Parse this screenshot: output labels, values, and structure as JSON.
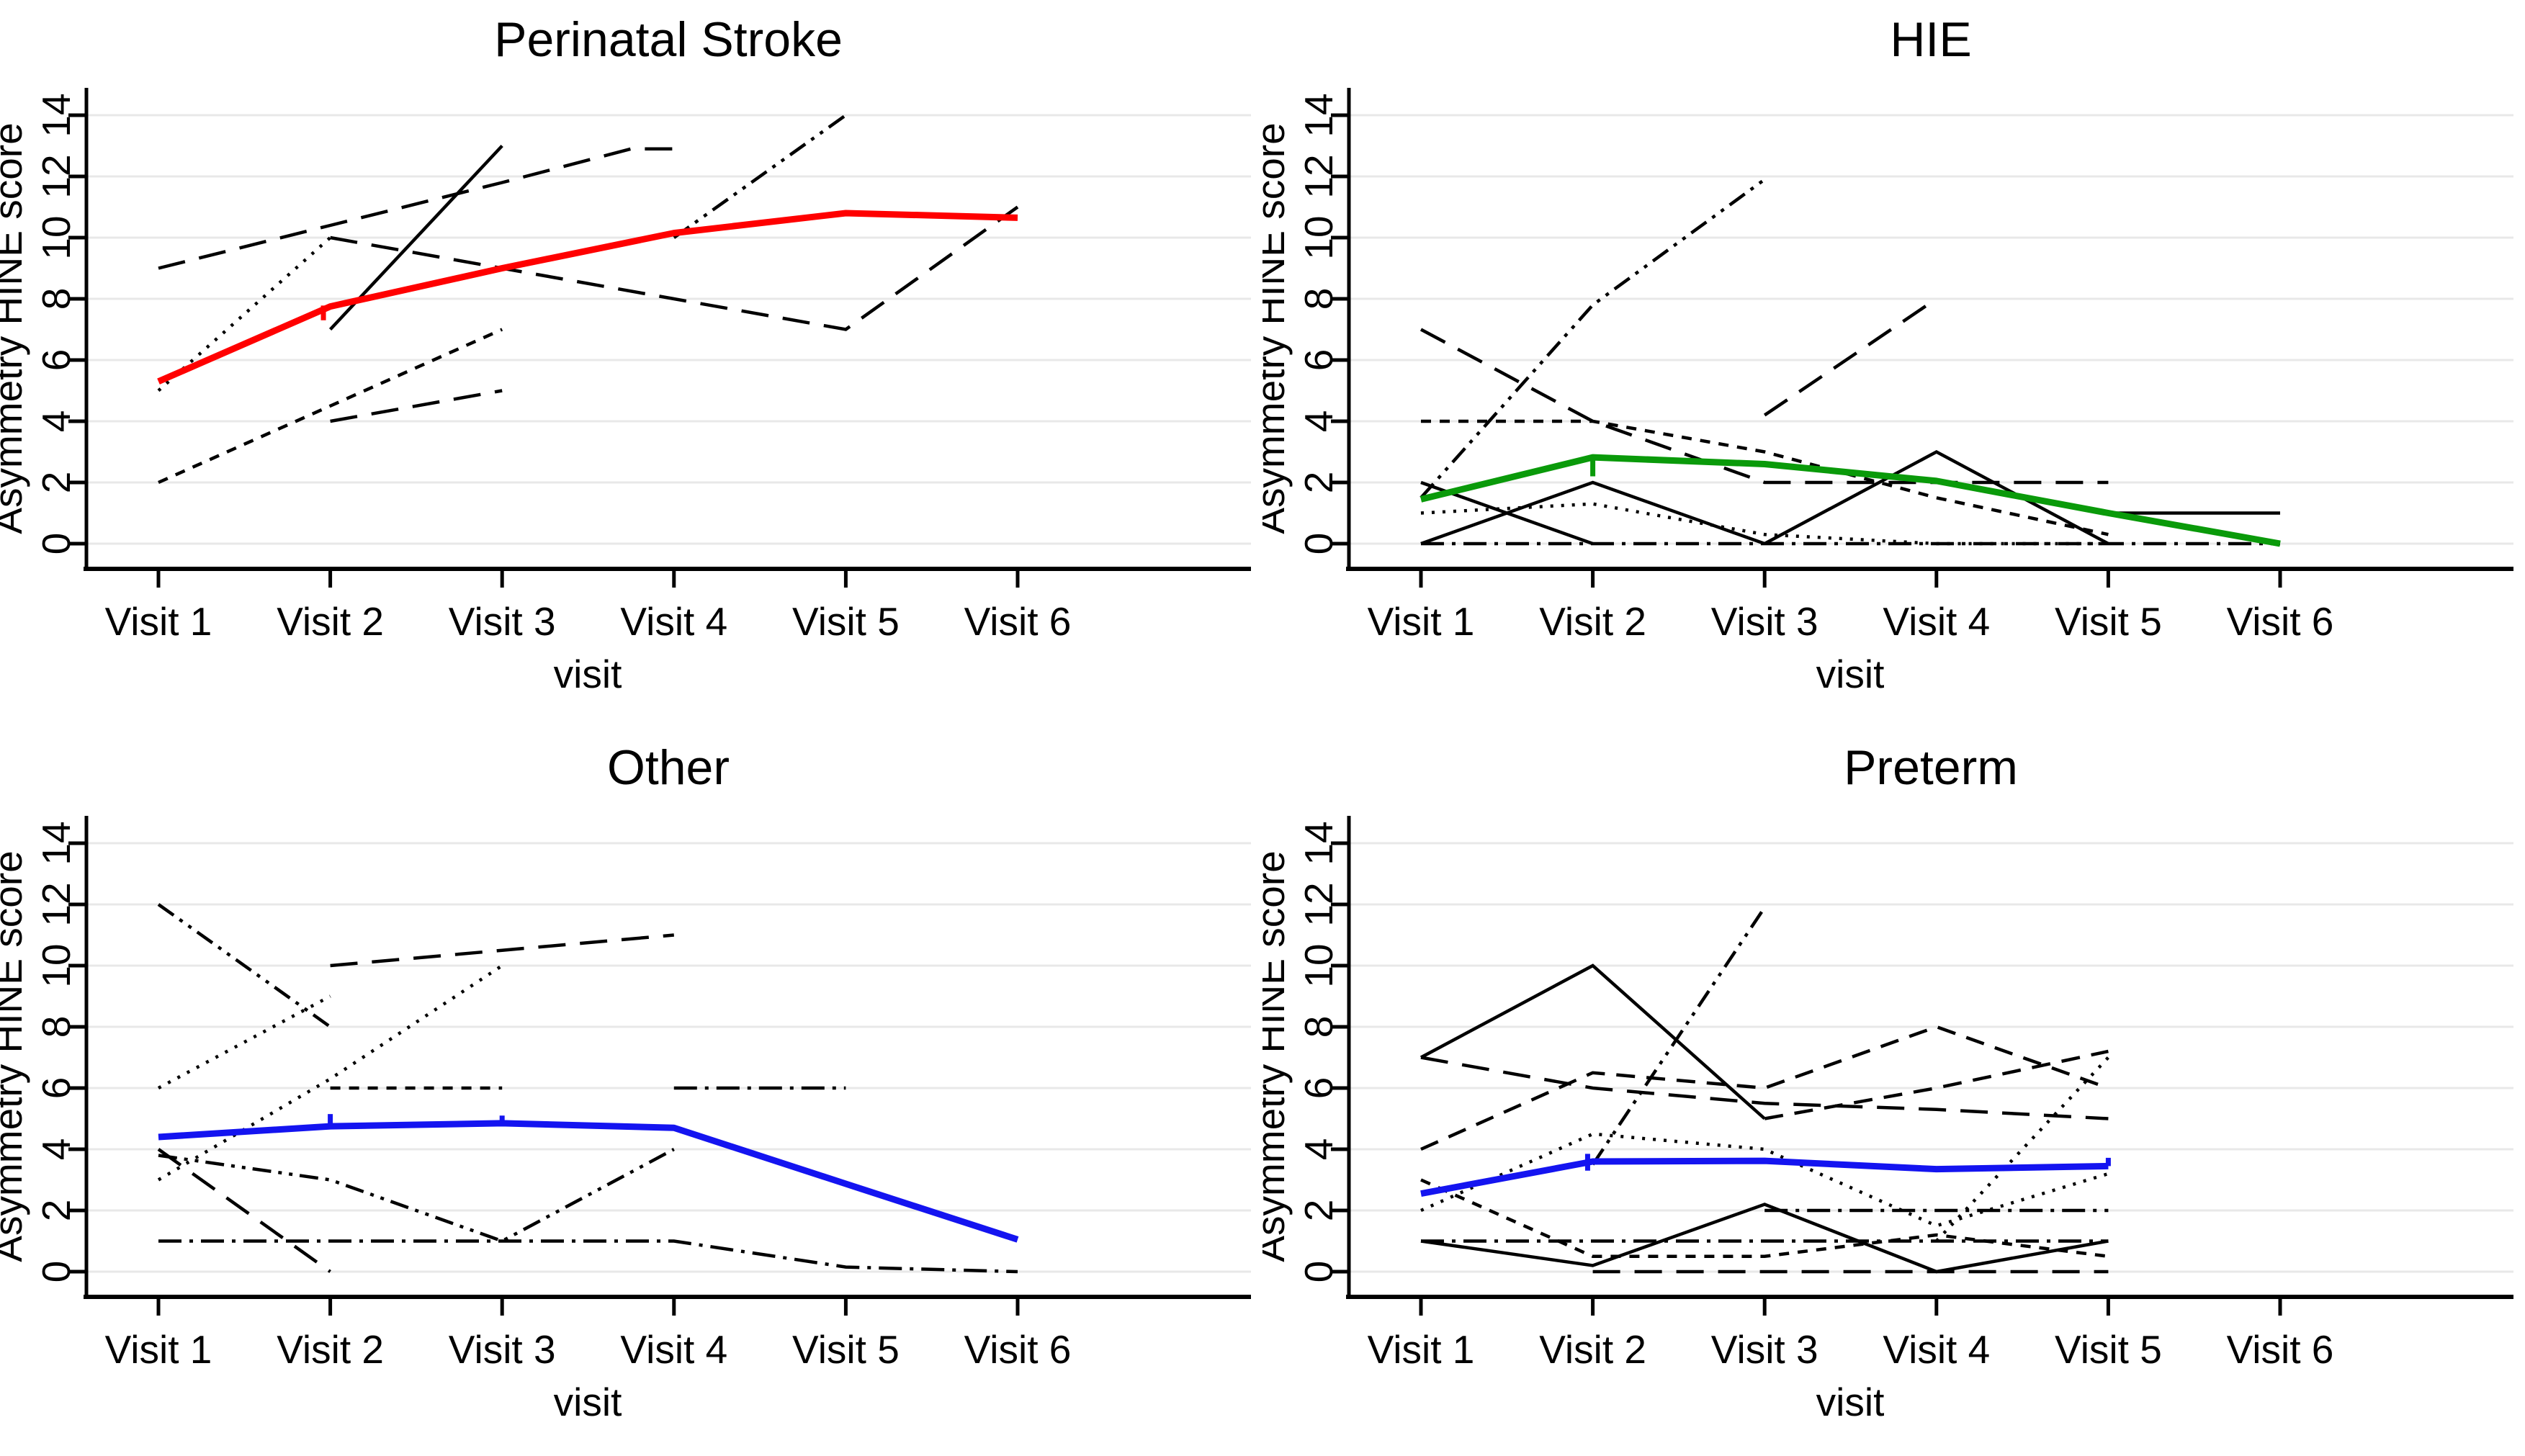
{
  "figure": {
    "background": "#ffffff",
    "grid_color": "#e8e8e8",
    "axis_color": "#000000",
    "trajectory_color": "#000000"
  },
  "chart_data": {
    "type": "line",
    "layout": "2x2-small-multiples",
    "xlabel": "visit",
    "ylabel": "Asymmetry HINE score",
    "categories": [
      "Visit 1",
      "Visit 2",
      "Visit 3",
      "Visit 4",
      "Visit 5",
      "Visit 6"
    ],
    "yticks": [
      0,
      2,
      4,
      6,
      8,
      10,
      12,
      14
    ],
    "ylim": [
      0,
      14
    ],
    "grid": "horizontal-only",
    "legend": "none",
    "note": "Each panel shows individual patient trajectories (black, varied dash patterns) and a thick colored group-mean line.",
    "panels": [
      {
        "title": "Perinatal Stroke",
        "mean": {
          "name": "mean-perinatal-stroke",
          "color": "#ff0000",
          "points": [
            [
              1,
              5.3
            ],
            [
              2,
              7.75
            ],
            [
              3,
              9.0
            ],
            [
              4,
              10.15
            ],
            [
              5,
              10.8
            ],
            [
              6,
              10.65
            ]
          ],
          "step_ticks": [
            {
              "x": 1.96,
              "y1": 7.3,
              "y2": 7.78
            }
          ]
        },
        "lines": [
          {
            "style": "longdash",
            "points": [
              [
                1,
                9
              ],
              [
                2,
                10.4
              ],
              [
                3,
                11.8
              ],
              [
                3.75,
                12.9
              ],
              [
                4,
                12.9
              ]
            ]
          },
          {
            "style": "longdash",
            "points": [
              [
                2,
                10
              ],
              [
                3,
                9
              ],
              [
                4,
                8
              ],
              [
                5,
                7
              ],
              [
                6,
                11
              ]
            ]
          },
          {
            "style": "solid",
            "points": [
              [
                2,
                7
              ],
              [
                3,
                13
              ]
            ]
          },
          {
            "style": "dotted",
            "points": [
              [
                1,
                5
              ],
              [
                2,
                10
              ]
            ]
          },
          {
            "style": "shortdash",
            "points": [
              [
                1,
                2
              ],
              [
                2,
                4.5
              ],
              [
                3,
                7
              ]
            ]
          },
          {
            "style": "longdash",
            "points": [
              [
                2,
                4
              ],
              [
                3,
                5
              ]
            ]
          },
          {
            "style": "dashdotdot",
            "points": [
              [
                4,
                10
              ],
              [
                5,
                14
              ]
            ]
          }
        ]
      },
      {
        "title": "HIE",
        "mean": {
          "name": "mean-hie",
          "color": "#0a9a0a",
          "points": [
            [
              1,
              1.45
            ],
            [
              2,
              2.82
            ],
            [
              3,
              2.6
            ],
            [
              4,
              2.05
            ],
            [
              5,
              1.0
            ],
            [
              6,
              0
            ]
          ],
          "step_ticks": [
            {
              "x": 2,
              "y1": 2.82,
              "y2": 2.2
            }
          ]
        },
        "lines": [
          {
            "style": "dashdotdot",
            "points": [
              [
                1,
                1.5
              ],
              [
                2,
                7.8
              ],
              [
                3,
                11.9
              ]
            ]
          },
          {
            "style": "longdash",
            "points": [
              [
                1,
                7
              ],
              [
                2,
                4
              ],
              [
                3,
                2
              ],
              [
                4,
                2
              ],
              [
                5,
                2
              ]
            ]
          },
          {
            "style": "shortdash",
            "points": [
              [
                1,
                4
              ],
              [
                2,
                4
              ],
              [
                3,
                3
              ],
              [
                4,
                1.5
              ],
              [
                5,
                0.3
              ]
            ]
          },
          {
            "style": "longdash",
            "points": [
              [
                3,
                4.2
              ],
              [
                4,
                8
              ]
            ]
          },
          {
            "style": "solid",
            "points": [
              [
                1,
                2
              ],
              [
                2,
                0
              ]
            ]
          },
          {
            "style": "solid",
            "points": [
              [
                1,
                0
              ],
              [
                2,
                2
              ],
              [
                3,
                0
              ]
            ]
          },
          {
            "style": "solid",
            "points": [
              [
                3,
                0
              ],
              [
                4,
                3
              ],
              [
                5,
                0
              ]
            ]
          },
          {
            "style": "solid",
            "points": [
              [
                5,
                1
              ],
              [
                6,
                1
              ]
            ]
          },
          {
            "style": "dotted",
            "points": [
              [
                1,
                1
              ],
              [
                2,
                1.3
              ],
              [
                3,
                0.3
              ],
              [
                4,
                0
              ],
              [
                5,
                0
              ]
            ]
          },
          {
            "style": "dashdot",
            "points": [
              [
                1,
                0
              ],
              [
                2,
                0
              ],
              [
                3,
                0
              ],
              [
                4,
                0
              ],
              [
                5,
                0
              ],
              [
                6,
                0
              ]
            ]
          }
        ]
      },
      {
        "title": "Other",
        "mean": {
          "name": "mean-other",
          "color": "#1414f0",
          "points": [
            [
              1,
              4.4
            ],
            [
              2,
              4.75
            ],
            [
              3,
              4.85
            ],
            [
              4,
              4.7
            ],
            [
              5,
              2.87
            ],
            [
              6,
              1.05
            ]
          ],
          "step_ticks": [
            {
              "x": 2,
              "y1": 4.75,
              "y2": 5.15
            },
            {
              "x": 3,
              "y1": 4.85,
              "y2": 5.1
            }
          ]
        },
        "lines": [
          {
            "style": "dashdotdot",
            "points": [
              [
                1,
                12
              ],
              [
                2,
                8
              ]
            ]
          },
          {
            "style": "dotted",
            "points": [
              [
                1,
                6
              ],
              [
                2,
                9
              ]
            ]
          },
          {
            "style": "longdash",
            "points": [
              [
                2,
                10
              ],
              [
                3,
                10.5
              ],
              [
                4,
                11
              ]
            ]
          },
          {
            "style": "dotted",
            "points": [
              [
                1,
                3
              ],
              [
                2,
                6.3
              ],
              [
                3,
                10
              ]
            ]
          },
          {
            "style": "shortdash",
            "points": [
              [
                2,
                6
              ],
              [
                3,
                6
              ]
            ]
          },
          {
            "style": "dashdot",
            "points": [
              [
                4,
                6
              ],
              [
                5,
                6
              ]
            ]
          },
          {
            "style": "longdash",
            "points": [
              [
                1,
                4
              ],
              [
                2,
                0
              ]
            ]
          },
          {
            "style": "dashdotdot",
            "points": [
              [
                1,
                3.8
              ],
              [
                2,
                3
              ],
              [
                3,
                1
              ],
              [
                4,
                4
              ]
            ]
          },
          {
            "style": "dashdot",
            "points": [
              [
                1,
                1
              ],
              [
                2,
                1
              ],
              [
                3,
                1
              ],
              [
                4,
                1
              ],
              [
                5,
                0.15
              ],
              [
                6,
                0
              ]
            ]
          }
        ]
      },
      {
        "title": "Preterm",
        "mean": {
          "name": "mean-preterm",
          "color": "#1414f0",
          "points": [
            [
              1,
              2.55
            ],
            [
              2,
              3.6
            ],
            [
              3,
              3.62
            ],
            [
              4,
              3.35
            ],
            [
              5,
              3.45
            ]
          ],
          "step_ticks": [
            {
              "x": 1.97,
              "y1": 3.3,
              "y2": 3.85
            },
            {
              "x": 5,
              "y1": 3.45,
              "y2": 3.72
            }
          ]
        },
        "lines": [
          {
            "style": "solid",
            "points": [
              [
                1,
                7
              ],
              [
                2,
                10
              ],
              [
                3,
                5
              ]
            ]
          },
          {
            "style": "dashdotdot",
            "points": [
              [
                2,
                3.5
              ],
              [
                3,
                11.9
              ]
            ]
          },
          {
            "style": "dash",
            "points": [
              [
                1,
                4
              ],
              [
                2,
                6.5
              ],
              [
                3,
                6
              ],
              [
                4,
                8
              ],
              [
                5,
                6
              ]
            ]
          },
          {
            "style": "dash",
            "points": [
              [
                3,
                5
              ],
              [
                4,
                6
              ],
              [
                5,
                7.2
              ]
            ]
          },
          {
            "style": "longdash",
            "points": [
              [
                1,
                7
              ],
              [
                2,
                6
              ],
              [
                3,
                5.5
              ],
              [
                4,
                5.3
              ],
              [
                5,
                5
              ]
            ]
          },
          {
            "style": "dotted",
            "points": [
              [
                4,
                1
              ],
              [
                5,
                7
              ]
            ]
          },
          {
            "style": "dotted",
            "points": [
              [
                1,
                2
              ],
              [
                2,
                4.5
              ],
              [
                3,
                4
              ],
              [
                4,
                1.5
              ],
              [
                5,
                3.2
              ]
            ]
          },
          {
            "style": "dashdot",
            "points": [
              [
                1,
                1
              ],
              [
                2,
                1
              ],
              [
                3,
                1
              ],
              [
                4,
                1
              ],
              [
                5,
                1
              ]
            ]
          },
          {
            "style": "dashdot",
            "points": [
              [
                3,
                2
              ],
              [
                4,
                2
              ],
              [
                5,
                2
              ]
            ]
          },
          {
            "style": "longdash",
            "points": [
              [
                2,
                0
              ],
              [
                3,
                0
              ],
              [
                4,
                0
              ],
              [
                5,
                0
              ]
            ]
          },
          {
            "style": "solid",
            "points": [
              [
                1,
                1
              ],
              [
                2,
                0.2
              ],
              [
                3,
                2.2
              ],
              [
                4,
                0
              ],
              [
                5,
                1
              ]
            ]
          },
          {
            "style": "shortdash",
            "points": [
              [
                1,
                3
              ],
              [
                2,
                0.5
              ],
              [
                3,
                0.5
              ],
              [
                4,
                1.2
              ],
              [
                5,
                0.5
              ]
            ]
          }
        ]
      }
    ]
  }
}
